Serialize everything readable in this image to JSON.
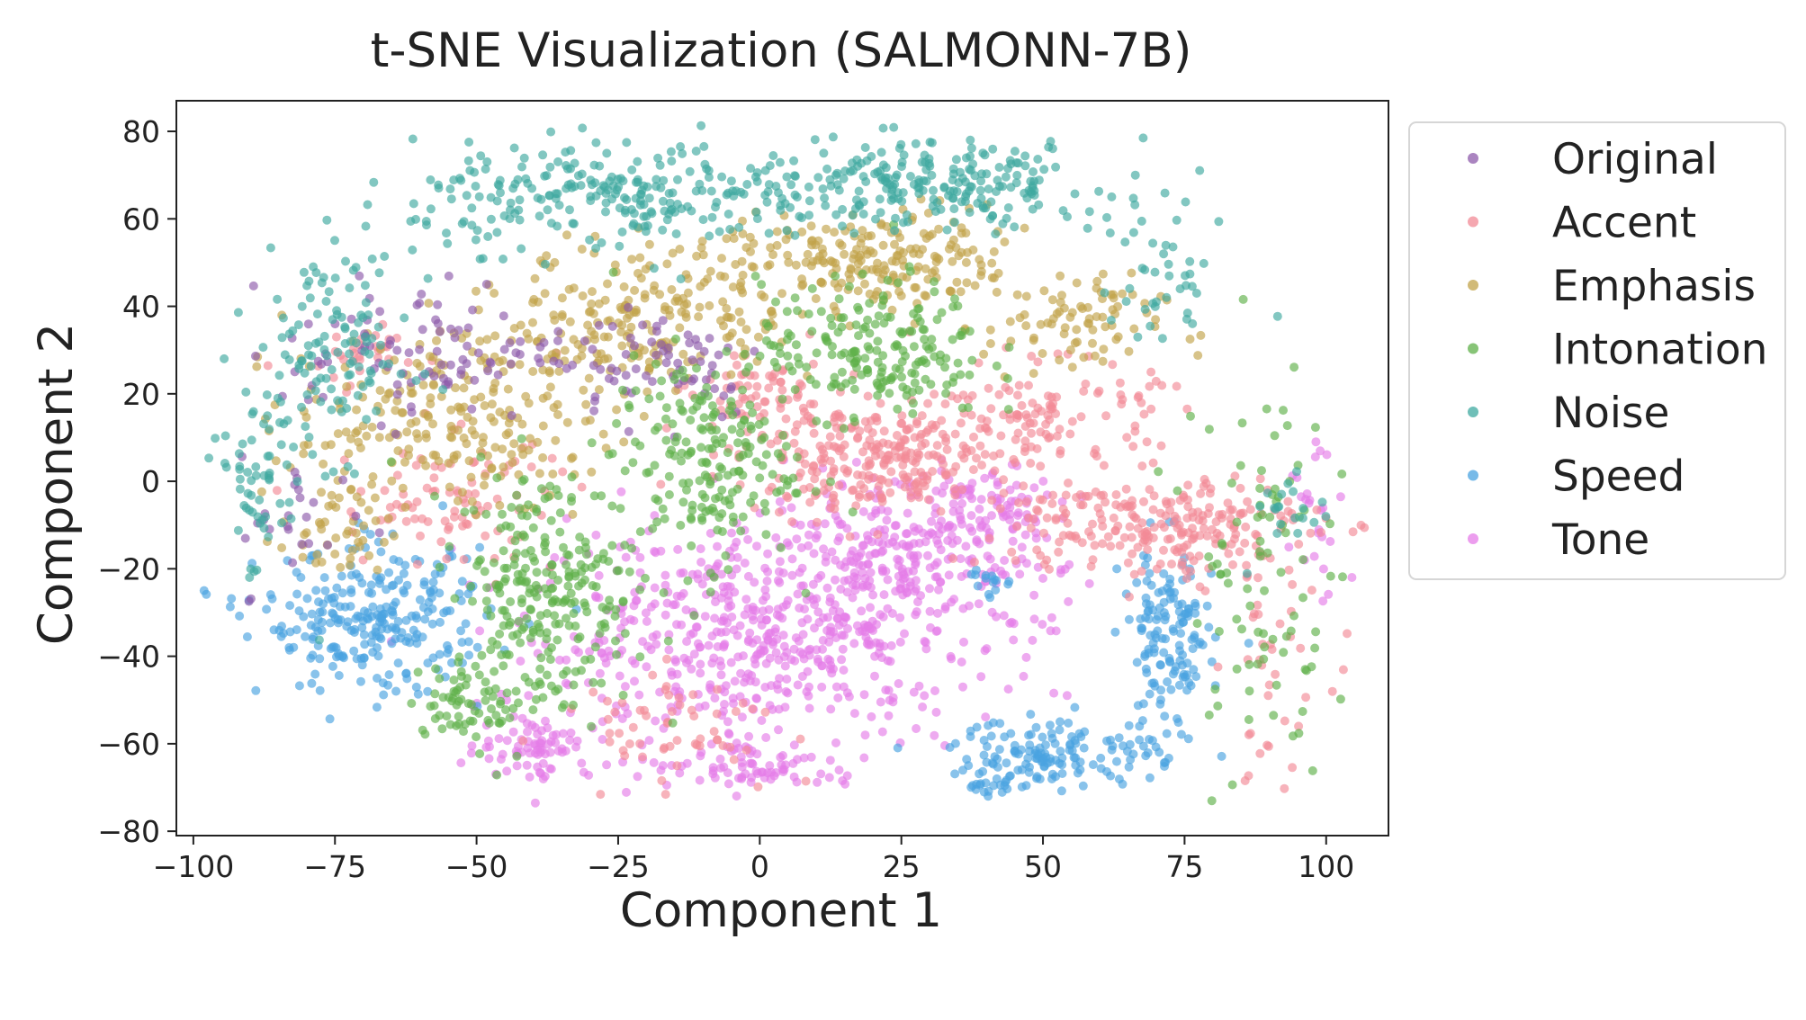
{
  "chart_data": {
    "type": "scatter",
    "title": "t-SNE Visualization (SALMONN-7B)",
    "xlabel": "Component 1",
    "ylabel": "Component 2",
    "xlim": [
      -103,
      111
    ],
    "ylim": [
      -81,
      87
    ],
    "xticks": [
      -100,
      -75,
      -50,
      -25,
      0,
      25,
      50,
      75,
      100
    ],
    "yticks": [
      -80,
      -60,
      -40,
      -20,
      0,
      20,
      40,
      60,
      80
    ],
    "grid": false,
    "legend_position": "outside-right",
    "series": [
      {
        "name": "Original",
        "color": "#8e5bab",
        "clusters": [
          {
            "x": -60,
            "y": 30,
            "sx": 12,
            "sy": 8,
            "n": 90
          },
          {
            "x": -18,
            "y": 28,
            "sx": 10,
            "sy": 7,
            "n": 70
          },
          {
            "x": -80,
            "y": -10,
            "sx": 6,
            "sy": 8,
            "n": 25
          }
        ]
      },
      {
        "name": "Accent",
        "color": "#f28a96",
        "clusters": [
          {
            "x": 20,
            "y": 5,
            "sx": 12,
            "sy": 6,
            "n": 260
          },
          {
            "x": 70,
            "y": -10,
            "sx": 14,
            "sy": 6,
            "n": 240
          },
          {
            "x": 50,
            "y": 15,
            "sx": 10,
            "sy": 6,
            "n": 120
          },
          {
            "x": 0,
            "y": 20,
            "sx": 6,
            "sy": 5,
            "n": 60
          },
          {
            "x": -55,
            "y": -5,
            "sx": 10,
            "sy": 8,
            "n": 90
          },
          {
            "x": -15,
            "y": -55,
            "sx": 10,
            "sy": 6,
            "n": 60
          },
          {
            "x": -70,
            "y": 28,
            "sx": 6,
            "sy": 4,
            "n": 30
          },
          {
            "x": 90,
            "y": -40,
            "sx": 5,
            "sy": 15,
            "n": 40
          }
        ]
      },
      {
        "name": "Emphasis",
        "color": "#c2a34a",
        "clusters": [
          {
            "x": -55,
            "y": 15,
            "sx": 14,
            "sy": 10,
            "n": 240
          },
          {
            "x": -20,
            "y": 38,
            "sx": 12,
            "sy": 8,
            "n": 200
          },
          {
            "x": 20,
            "y": 50,
            "sx": 14,
            "sy": 6,
            "n": 220
          },
          {
            "x": 55,
            "y": 35,
            "sx": 8,
            "sy": 6,
            "n": 80
          },
          {
            "x": -75,
            "y": -12,
            "sx": 5,
            "sy": 6,
            "n": 50
          }
        ]
      },
      {
        "name": "Intonation",
        "color": "#5fb04a",
        "clusters": [
          {
            "x": -38,
            "y": -25,
            "sx": 8,
            "sy": 14,
            "n": 260
          },
          {
            "x": -10,
            "y": 5,
            "sx": 8,
            "sy": 12,
            "n": 200
          },
          {
            "x": 20,
            "y": 30,
            "sx": 10,
            "sy": 8,
            "n": 200
          },
          {
            "x": -50,
            "y": -50,
            "sx": 6,
            "sy": 4,
            "n": 60
          },
          {
            "x": 88,
            "y": -20,
            "sx": 6,
            "sy": 25,
            "n": 90
          }
        ]
      },
      {
        "name": "Noise",
        "color": "#3fa9a0",
        "clusters": [
          {
            "x": -25,
            "y": 65,
            "sx": 18,
            "sy": 6,
            "n": 250
          },
          {
            "x": 30,
            "y": 68,
            "sx": 16,
            "sy": 5,
            "n": 230
          },
          {
            "x": -75,
            "y": 30,
            "sx": 7,
            "sy": 12,
            "n": 120
          },
          {
            "x": -88,
            "y": 0,
            "sx": 4,
            "sy": 12,
            "n": 60
          },
          {
            "x": 70,
            "y": 45,
            "sx": 5,
            "sy": 8,
            "n": 40
          },
          {
            "x": 95,
            "y": -5,
            "sx": 4,
            "sy": 6,
            "n": 20
          }
        ]
      },
      {
        "name": "Speed",
        "color": "#4aa3e0",
        "clusters": [
          {
            "x": -68,
            "y": -32,
            "sx": 10,
            "sy": 8,
            "n": 270
          },
          {
            "x": 72,
            "y": -38,
            "sx": 4,
            "sy": 12,
            "n": 150
          },
          {
            "x": 52,
            "y": -62,
            "sx": 9,
            "sy": 4,
            "n": 140
          },
          {
            "x": 40,
            "y": -70,
            "sx": 2,
            "sy": 1,
            "n": 15
          },
          {
            "x": 40,
            "y": -23,
            "sx": 3,
            "sy": 2,
            "n": 15
          }
        ]
      },
      {
        "name": "Tone",
        "color": "#e57ce8",
        "clusters": [
          {
            "x": 0,
            "y": -35,
            "sx": 20,
            "sy": 12,
            "n": 550
          },
          {
            "x": 25,
            "y": -18,
            "sx": 14,
            "sy": 8,
            "n": 240
          },
          {
            "x": 40,
            "y": -5,
            "sx": 8,
            "sy": 5,
            "n": 80
          },
          {
            "x": -40,
            "y": -60,
            "sx": 5,
            "sy": 4,
            "n": 80
          },
          {
            "x": 0,
            "y": -65,
            "sx": 10,
            "sy": 3,
            "n": 80
          },
          {
            "x": 98,
            "y": -10,
            "sx": 3,
            "sy": 12,
            "n": 25
          }
        ]
      }
    ]
  }
}
